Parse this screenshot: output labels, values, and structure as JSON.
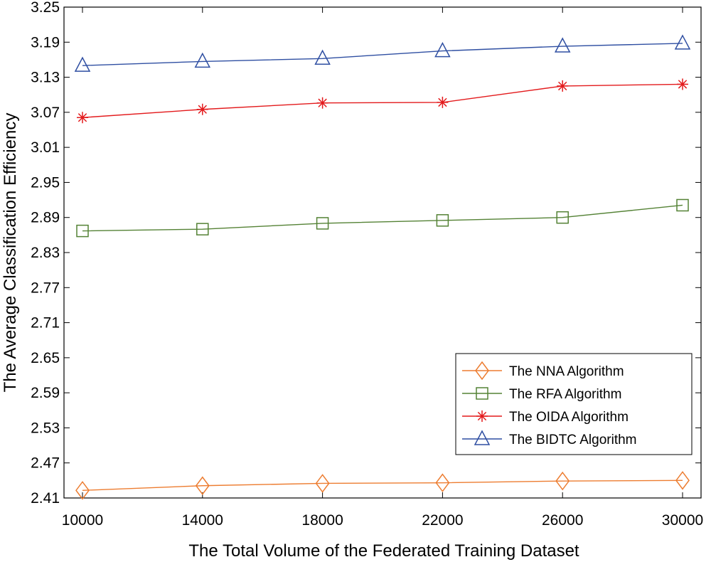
{
  "chart_data": {
    "type": "line",
    "title": "",
    "xlabel": "The Total Volume of the Federated Training Dataset",
    "ylabel": "The Average Classification Efficiency",
    "x": [
      10000,
      14000,
      18000,
      22000,
      26000,
      30000
    ],
    "x_tick_labels": [
      "10000",
      "14000",
      "18000",
      "22000",
      "26000",
      "30000"
    ],
    "xlim": [
      10000,
      30000
    ],
    "y_ticks": [
      2.41,
      2.47,
      2.53,
      2.59,
      2.65,
      2.71,
      2.77,
      2.83,
      2.89,
      2.95,
      3.01,
      3.07,
      3.13,
      3.19,
      3.25
    ],
    "y_tick_labels": [
      "2.41",
      "2.47",
      "2.53",
      "2.59",
      "2.65",
      "2.71",
      "2.77",
      "2.83",
      "2.89",
      "2.95",
      "3.01",
      "3.07",
      "3.13",
      "3.19",
      "3.25"
    ],
    "ylim": [
      2.41,
      3.25
    ],
    "grid": false,
    "legend_position": "bottom-right",
    "series": [
      {
        "key": "nna",
        "name": "The NNA Algorithm",
        "marker": "diamond",
        "color": "#ED7D31",
        "values": [
          2.423,
          2.431,
          2.435,
          2.436,
          2.439,
          2.44
        ]
      },
      {
        "key": "rfa",
        "name": "The RFA Algorithm",
        "marker": "square",
        "color": "#548235",
        "values": [
          2.867,
          2.87,
          2.88,
          2.885,
          2.89,
          2.911
        ]
      },
      {
        "key": "oida",
        "name": "The OIDA Algorithm",
        "marker": "asterisk",
        "color": "#E31A1C",
        "values": [
          3.061,
          3.075,
          3.086,
          3.087,
          3.115,
          3.118
        ]
      },
      {
        "key": "bidtc",
        "name": "The BIDTC Algorithm",
        "marker": "triangle",
        "color": "#2F4FA2",
        "values": [
          3.15,
          3.157,
          3.162,
          3.175,
          3.183,
          3.188
        ]
      }
    ]
  }
}
